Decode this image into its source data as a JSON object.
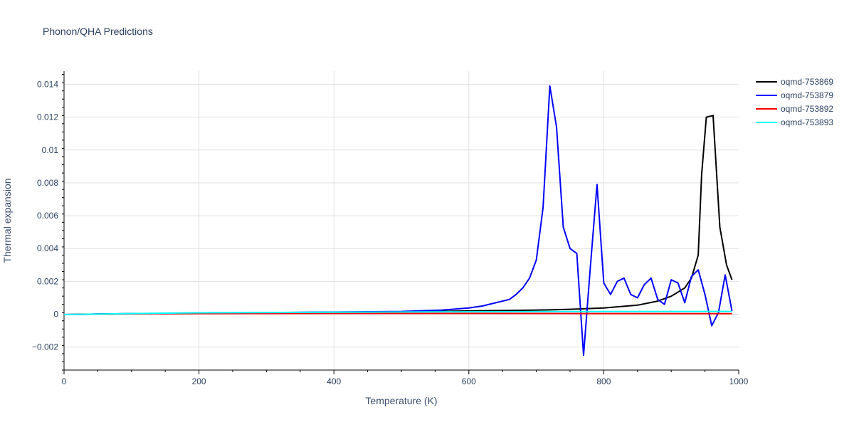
{
  "chart_data": {
    "type": "line",
    "title": "Phonon/QHA Predictions",
    "xlabel": "Temperature (K)",
    "ylabel": "Thermal expansion",
    "xlim": [
      0,
      1000
    ],
    "ylim": [
      -0.0034,
      0.0148
    ],
    "x_ticks": [
      0,
      200,
      400,
      600,
      800,
      1000
    ],
    "x_tick_labels": [
      "0",
      "200",
      "400",
      "600",
      "800",
      "1000"
    ],
    "y_ticks": [
      -0.002,
      0,
      0.002,
      0.004,
      0.006,
      0.008,
      0.01,
      0.012,
      0.014
    ],
    "y_tick_labels": [
      "−0.002",
      "0",
      "0.002",
      "0.004",
      "0.006",
      "0.008",
      "0.01",
      "0.012",
      "0.014"
    ],
    "grid": true,
    "legend_position": "top-right",
    "series": [
      {
        "name": "oqmd-753869",
        "color": "#000000",
        "x": [
          0,
          50,
          100,
          150,
          200,
          300,
          400,
          500,
          600,
          700,
          750,
          800,
          850,
          880,
          900,
          920,
          930,
          940,
          945,
          952,
          962,
          972,
          982,
          990
        ],
        "y": [
          -2e-05,
          1e-05,
          3e-05,
          5e-05,
          7e-05,
          0.0001,
          0.00012,
          0.00015,
          0.0002,
          0.00025,
          0.0003,
          0.00038,
          0.00055,
          0.0008,
          0.0011,
          0.0016,
          0.0022,
          0.0036,
          0.0085,
          0.012,
          0.0121,
          0.0053,
          0.003,
          0.0021
        ]
      },
      {
        "name": "oqmd-753879",
        "color": "#0000ff",
        "x": [
          0,
          50,
          100,
          150,
          200,
          300,
          400,
          500,
          560,
          600,
          620,
          640,
          660,
          670,
          680,
          690,
          700,
          710,
          720,
          730,
          740,
          750,
          760,
          770,
          780,
          790,
          800,
          810,
          820,
          830,
          840,
          850,
          860,
          870,
          880,
          890,
          900,
          910,
          920,
          930,
          940,
          950,
          960,
          970,
          980,
          990
        ],
        "y": [
          -2e-05,
          1e-05,
          3e-05,
          5e-05,
          8e-05,
          0.0001,
          0.00013,
          0.00017,
          0.00025,
          0.00038,
          0.0005,
          0.0007,
          0.0009,
          0.0012,
          0.0016,
          0.0022,
          0.0033,
          0.0065,
          0.0139,
          0.0114,
          0.0053,
          0.004,
          0.0037,
          -0.0025,
          0.0028,
          0.0079,
          0.0019,
          0.0012,
          0.002,
          0.0022,
          0.0012,
          0.001,
          0.0018,
          0.0022,
          0.0009,
          0.0006,
          0.0021,
          0.0019,
          0.0007,
          0.0023,
          0.0027,
          0.0012,
          -0.0007,
          0.0001,
          0.0024,
          0.0002
        ]
      },
      {
        "name": "oqmd-753892",
        "color": "#ff0000",
        "x": [
          0,
          100,
          200,
          400,
          600,
          800,
          990
        ],
        "y": [
          -2e-05,
          2e-05,
          4e-05,
          5e-05,
          5e-05,
          4e-05,
          3e-05
        ]
      },
      {
        "name": "oqmd-753893",
        "color": "#00ffff",
        "x": [
          0,
          100,
          200,
          400,
          600,
          800,
          990
        ],
        "y": [
          -2e-05,
          4e-05,
          9e-05,
          0.00012,
          0.00015,
          0.00016,
          0.00017
        ]
      }
    ]
  }
}
